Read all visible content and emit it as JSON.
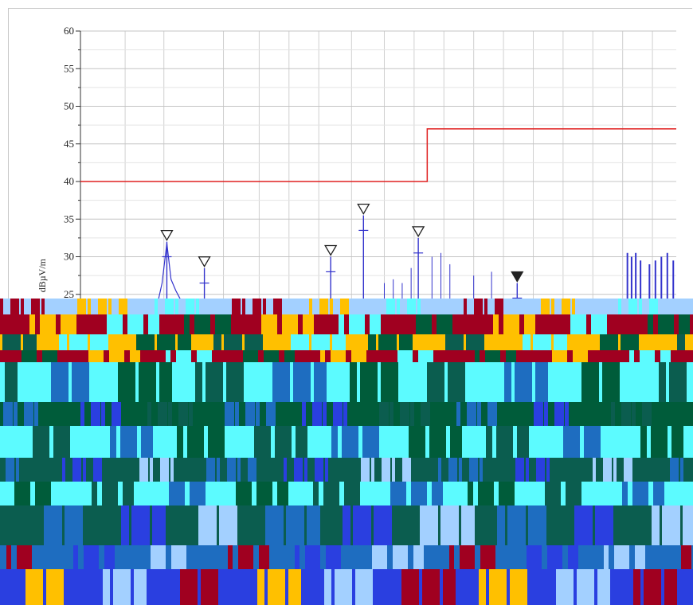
{
  "chart_data": {
    "type": "line",
    "title": "",
    "xlabel": "",
    "ylabel": "dBµV/m",
    "ylim": [
      20,
      60
    ],
    "y_ticks": [
      25,
      30,
      35,
      40,
      45,
      50,
      55,
      60
    ],
    "grid": true,
    "colors": {
      "limit": "#e02020",
      "measurement": "#3333cc",
      "marker": "#222222",
      "grid": "#d0d0d0"
    },
    "x_range": [
      0,
      1
    ],
    "series": [
      {
        "name": "",
        "kind": "limit",
        "points": [
          [
            0,
            40
          ],
          [
            0.582,
            40
          ],
          [
            0.582,
            47
          ],
          [
            1,
            47
          ]
        ]
      }
    ],
    "peaks": [
      {
        "x": 0.145,
        "y": 32,
        "marker": "open"
      },
      {
        "x": 0.208,
        "y": 28.5,
        "marker": "open"
      },
      {
        "x": 0.42,
        "y": 30,
        "marker": "open"
      },
      {
        "x": 0.475,
        "y": 35.5,
        "marker": "open"
      },
      {
        "x": 0.567,
        "y": 32.5,
        "marker": "open"
      },
      {
        "x": 0.733,
        "y": 26.5,
        "marker": "filled"
      }
    ],
    "minor_spikes": [
      {
        "x": 0.51,
        "y": 26.5
      },
      {
        "x": 0.525,
        "y": 27
      },
      {
        "x": 0.54,
        "y": 26.5
      },
      {
        "x": 0.555,
        "y": 28.5
      },
      {
        "x": 0.59,
        "y": 30
      },
      {
        "x": 0.605,
        "y": 30.5
      },
      {
        "x": 0.62,
        "y": 29
      },
      {
        "x": 0.66,
        "y": 27.5
      },
      {
        "x": 0.69,
        "y": 28
      }
    ],
    "noise_cluster": [
      {
        "x": 0.918,
        "y": 30.5
      },
      {
        "x": 0.925,
        "y": 30
      },
      {
        "x": 0.932,
        "y": 30.5
      },
      {
        "x": 0.94,
        "y": 29.5
      },
      {
        "x": 0.955,
        "y": 29
      },
      {
        "x": 0.965,
        "y": 29.5
      },
      {
        "x": 0.975,
        "y": 30
      },
      {
        "x": 0.985,
        "y": 30.5
      },
      {
        "x": 0.995,
        "y": 29.5
      }
    ]
  },
  "corruption_bands": [
    {
      "color": "#a3d0ff"
    },
    {
      "color": "#a00020"
    },
    {
      "color": "#ffc000"
    },
    {
      "color": "#5cfbff"
    },
    {
      "color": "#005c3a"
    },
    {
      "color": "#0b5d4f"
    },
    {
      "color": "#1e6dc0"
    },
    {
      "color": "#2a3fe0"
    }
  ]
}
